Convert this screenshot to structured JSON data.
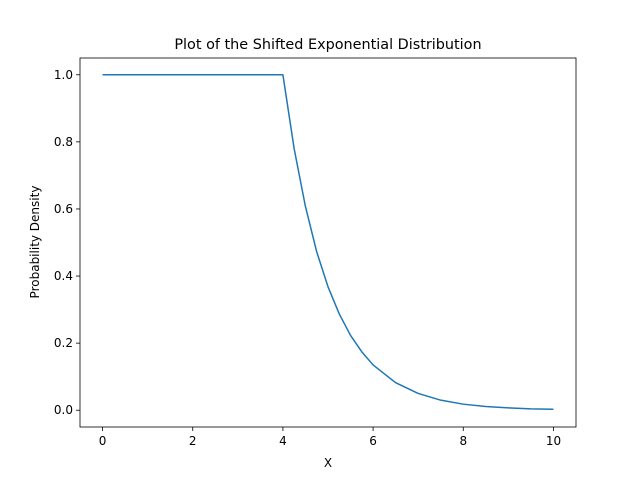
{
  "chart_data": {
    "type": "line",
    "title": "Plot of the Shifted Exponential Distribution",
    "xlabel": "X",
    "ylabel": "Probability Density",
    "xlim": [
      -0.5,
      10.5
    ],
    "ylim": [
      -0.05,
      1.05
    ],
    "xticks": [
      0,
      2,
      4,
      6,
      8,
      10
    ],
    "yticks": [
      0.0,
      0.2,
      0.4,
      0.6,
      0.8,
      1.0
    ],
    "xtick_labels": [
      "0",
      "2",
      "4",
      "6",
      "8",
      "10"
    ],
    "ytick_labels": [
      "0.0",
      "0.2",
      "0.4",
      "0.6",
      "0.8",
      "1.0"
    ],
    "grid": false,
    "legend": "none",
    "series": [
      {
        "color": "#1f77b4",
        "x": [
          0,
          0.5,
          1,
          1.5,
          2,
          2.5,
          3,
          3.5,
          4,
          4.25,
          4.5,
          4.75,
          5,
          5.25,
          5.5,
          5.75,
          6,
          6.5,
          7,
          7.5,
          8,
          8.5,
          9,
          9.5,
          10
        ],
        "y": [
          1.0,
          1.0,
          1.0,
          1.0,
          1.0,
          1.0,
          1.0,
          1.0,
          1.0,
          0.779,
          0.607,
          0.472,
          0.368,
          0.287,
          0.223,
          0.174,
          0.135,
          0.082,
          0.05,
          0.03,
          0.018,
          0.011,
          0.007,
          0.004,
          0.003
        ]
      }
    ]
  }
}
